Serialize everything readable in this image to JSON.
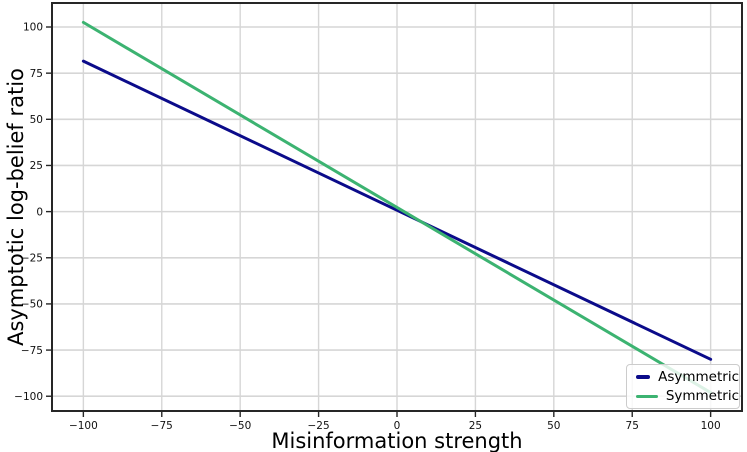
{
  "chart_data": {
    "type": "line",
    "title": "",
    "xlabel": "Misinformation strength",
    "ylabel": "Asymptotic log-belief ratio",
    "x": [
      -100,
      100
    ],
    "series": [
      {
        "name": "Asymmetric",
        "color": "#0b0b8a",
        "values": [
          81.5,
          -80
        ]
      },
      {
        "name": "Symmetric",
        "color": "#3cb371",
        "values": [
          102.5,
          -98
        ]
      }
    ],
    "xlim": [
      -110,
      110
    ],
    "ylim": [
      -108,
      113
    ],
    "xticks": [
      -100,
      -75,
      -50,
      -25,
      0,
      25,
      50,
      75,
      100
    ],
    "yticks": [
      -100,
      -75,
      -50,
      -25,
      0,
      25,
      50,
      75,
      100
    ],
    "grid": true,
    "legend_position": "lower right",
    "colors": {
      "grid": "#d6d6d6",
      "spine": "#262626",
      "tick_text": "#111111"
    }
  }
}
